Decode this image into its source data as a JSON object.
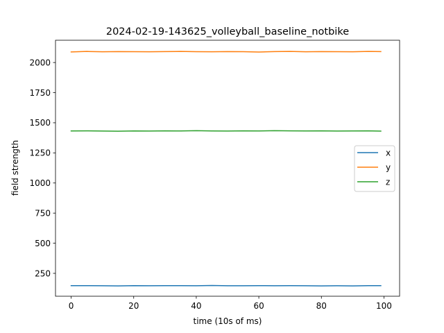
{
  "chart_data": {
    "type": "line",
    "title": "2024-02-19-143625_volleyball_baseline_notbike",
    "xlabel": "time (10s of ms)",
    "ylabel": "field strength",
    "xlim": [
      -5,
      105
    ],
    "ylim": [
      60,
      2185
    ],
    "xticks": [
      0,
      20,
      40,
      60,
      80,
      100
    ],
    "yticks": [
      250,
      500,
      750,
      1000,
      1250,
      1500,
      1750,
      2000
    ],
    "grid": false,
    "legend_position": "center-right",
    "series": [
      {
        "name": "x",
        "color": "#1f77b4",
        "x": [
          0,
          5,
          10,
          15,
          20,
          25,
          30,
          35,
          40,
          45,
          50,
          55,
          60,
          65,
          70,
          75,
          80,
          85,
          90,
          95,
          99
        ],
        "values": [
          148,
          148,
          147,
          146,
          148,
          147,
          148,
          148,
          147,
          149,
          147,
          147,
          148,
          147,
          148,
          147,
          146,
          147,
          146,
          148,
          148
        ]
      },
      {
        "name": "y",
        "color": "#ff7f0e",
        "x": [
          0,
          5,
          10,
          15,
          20,
          25,
          30,
          35,
          40,
          45,
          50,
          55,
          60,
          65,
          70,
          75,
          80,
          85,
          90,
          95,
          99
        ],
        "values": [
          2088,
          2092,
          2089,
          2091,
          2090,
          2089,
          2091,
          2092,
          2090,
          2089,
          2091,
          2090,
          2087,
          2091,
          2092,
          2089,
          2091,
          2090,
          2089,
          2092,
          2091
        ]
      },
      {
        "name": "z",
        "color": "#2ca02c",
        "x": [
          0,
          5,
          10,
          15,
          20,
          25,
          30,
          35,
          40,
          45,
          50,
          55,
          60,
          65,
          70,
          75,
          80,
          85,
          90,
          95,
          99
        ],
        "values": [
          1432,
          1433,
          1431,
          1430,
          1432,
          1431,
          1433,
          1432,
          1434,
          1432,
          1431,
          1433,
          1432,
          1434,
          1433,
          1432,
          1433,
          1431,
          1432,
          1433,
          1431
        ]
      }
    ]
  }
}
